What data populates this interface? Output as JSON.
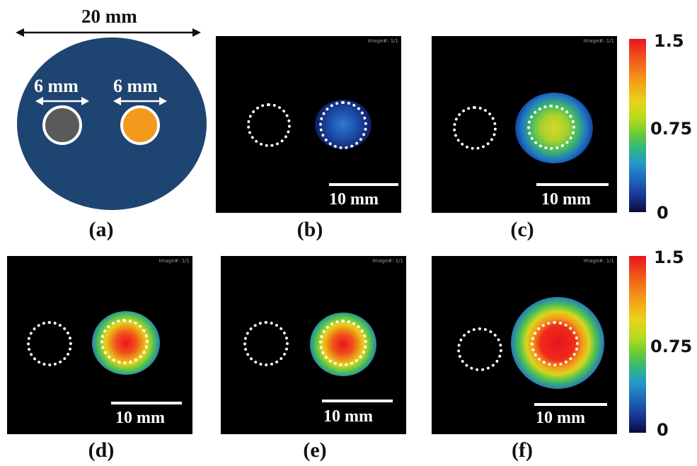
{
  "schematic": {
    "total_width_label": "20 mm",
    "left_hole_label": "6 mm",
    "right_hole_label": "6 mm",
    "colors": {
      "disk": "#1e4472",
      "left_hole": "#5a5a5a",
      "right_hole": "#f39a1e"
    }
  },
  "panel_tag": "Image#: 1/1",
  "scalebar_label": "10 mm",
  "captions": {
    "a": "(a)",
    "b": "(b)",
    "c": "(c)",
    "d": "(d)",
    "e": "(e)",
    "f": "(f)"
  },
  "colorbar": {
    "top": "1.5",
    "mid": "0.75",
    "bottom": "0",
    "colors": [
      "#e8151d",
      "#f59a18",
      "#e8d31a",
      "#5fc93a",
      "#2596c8",
      "#182f8c",
      "#0b0b3a"
    ]
  }
}
